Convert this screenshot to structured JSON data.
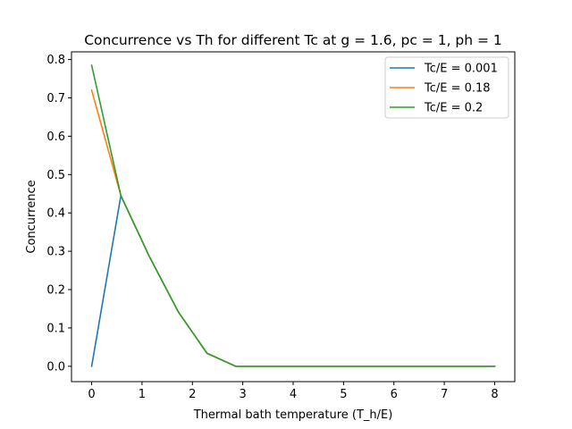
{
  "chart_data": {
    "type": "line",
    "title": "Concurrence vs Th for different Tc at g = 1.6, pc = 1, ph = 1",
    "xlabel": "Thermal bath temperature (T_h/E)",
    "ylabel": "Concurrence",
    "xlim": [
      -0.4,
      8.4
    ],
    "ylim": [
      -0.04,
      0.82
    ],
    "xticks": [
      0,
      1,
      2,
      3,
      4,
      5,
      6,
      7,
      8
    ],
    "yticks": [
      0.0,
      0.1,
      0.2,
      0.3,
      0.4,
      0.5,
      0.6,
      0.7,
      0.8
    ],
    "xtick_labels": [
      "0",
      "1",
      "2",
      "3",
      "4",
      "5",
      "6",
      "7",
      "8"
    ],
    "ytick_labels": [
      "0.0",
      "0.1",
      "0.2",
      "0.3",
      "0.4",
      "0.5",
      "0.6",
      "0.7",
      "0.8"
    ],
    "grid": false,
    "legend_position": "top-right",
    "x": [
      0.0,
      0.58,
      1.15,
      1.72,
      2.29,
      2.86,
      3.43,
      4.0,
      4.57,
      5.14,
      5.71,
      6.28,
      6.85,
      7.42,
      8.0
    ],
    "series": [
      {
        "name": "Tc/E = 0.001",
        "color": "#1f77b4",
        "values": [
          0.0,
          0.445,
          0.285,
          0.142,
          0.034,
          0.0,
          0.0,
          0.0,
          0.0,
          0.0,
          0.0,
          0.0,
          0.0,
          0.0,
          0.0
        ]
      },
      {
        "name": "Tc/E = 0.18",
        "color": "#ff7f0e",
        "values": [
          0.72,
          0.445,
          0.285,
          0.142,
          0.034,
          0.0,
          0.0,
          0.0,
          0.0,
          0.0,
          0.0,
          0.0,
          0.0,
          0.0,
          0.0
        ]
      },
      {
        "name": "Tc/E = 0.2",
        "color": "#2ca02c",
        "values": [
          0.785,
          0.445,
          0.285,
          0.142,
          0.034,
          0.0,
          0.0,
          0.0,
          0.0,
          0.0,
          0.0,
          0.0,
          0.0,
          0.0,
          0.0
        ]
      }
    ]
  }
}
